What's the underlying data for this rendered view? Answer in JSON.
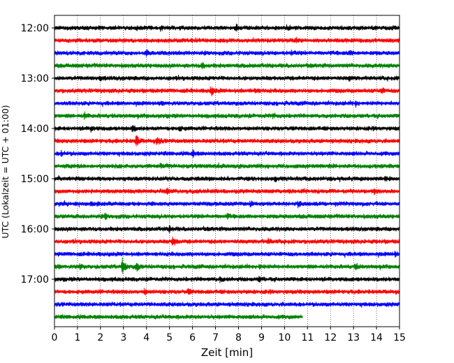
{
  "chart_data": {
    "type": "line",
    "title": "",
    "xlabel": "Zeit  [min]",
    "ylabel": "UTC (Lokalzeit = UTC + 01:00)",
    "xlim": [
      0,
      15
    ],
    "x_ticks": [
      "0",
      "1",
      "2",
      "3",
      "4",
      "5",
      "6",
      "7",
      "8",
      "9",
      "10",
      "11",
      "12",
      "13",
      "14",
      "15"
    ],
    "y_ticks": [
      "12:00",
      "13:00",
      "14:00",
      "15:00",
      "16:00",
      "17:00"
    ],
    "grid": "vertical dotted lines at each minute",
    "legend": "none",
    "trace_interval_minutes": 15,
    "color_cycle": [
      "#000000",
      "#ff0000",
      "#0000ff",
      "#008000"
    ],
    "series": [
      {
        "start": "12:00",
        "color": "#000000",
        "end_min": 15,
        "events": [
          {
            "t": 4.6,
            "amp": 1.2
          },
          {
            "t": 7.9,
            "amp": 1.1
          },
          {
            "t": 10.1,
            "amp": 1.3
          }
        ]
      },
      {
        "start": "12:15",
        "color": "#ff0000",
        "end_min": 15,
        "events": [
          {
            "t": 10.5,
            "amp": 1.4
          }
        ]
      },
      {
        "start": "12:30",
        "color": "#0000ff",
        "end_min": 15,
        "events": [
          {
            "t": 4.0,
            "amp": 1.3
          },
          {
            "t": 10.3,
            "amp": 1.1
          },
          {
            "t": 12.8,
            "amp": 1.1
          }
        ]
      },
      {
        "start": "12:45",
        "color": "#008000",
        "end_min": 15,
        "events": [
          {
            "t": 6.4,
            "amp": 1.6
          }
        ]
      },
      {
        "start": "13:00",
        "color": "#000000",
        "end_min": 15,
        "events": [
          {
            "t": 2.0,
            "amp": 1.1
          },
          {
            "t": 12.8,
            "amp": 1.0
          }
        ]
      },
      {
        "start": "13:15",
        "color": "#ff0000",
        "end_min": 15,
        "events": [
          {
            "t": 6.8,
            "amp": 2.5
          },
          {
            "t": 8.7,
            "amp": 1.3
          },
          {
            "t": 14.2,
            "amp": 1.2
          }
        ]
      },
      {
        "start": "13:30",
        "color": "#0000ff",
        "end_min": 15,
        "events": [
          {
            "t": 13.1,
            "amp": 1.2
          }
        ]
      },
      {
        "start": "13:45",
        "color": "#008000",
        "end_min": 15,
        "events": [
          {
            "t": 1.3,
            "amp": 1.2
          },
          {
            "t": 9.5,
            "amp": 1.0
          }
        ]
      },
      {
        "start": "14:00",
        "color": "#000000",
        "end_min": 15,
        "events": [
          {
            "t": 1.6,
            "amp": 1.4
          },
          {
            "t": 3.4,
            "amp": 1.6
          },
          {
            "t": 5.4,
            "amp": 1.3
          }
        ]
      },
      {
        "start": "14:15",
        "color": "#ff0000",
        "end_min": 15,
        "events": [
          {
            "t": 3.55,
            "amp": 4.0
          },
          {
            "t": 4.45,
            "amp": 2.4
          }
        ]
      },
      {
        "start": "14:30",
        "color": "#0000ff",
        "end_min": 15,
        "events": [
          {
            "t": 6.0,
            "amp": 1.8
          },
          {
            "t": 0.3,
            "amp": 1.2
          }
        ]
      },
      {
        "start": "14:45",
        "color": "#008000",
        "end_min": 15,
        "events": [
          {
            "t": 4.6,
            "amp": 1.0
          }
        ]
      },
      {
        "start": "15:00",
        "color": "#000000",
        "end_min": 15,
        "events": [
          {
            "t": 9.6,
            "amp": 1.0
          },
          {
            "t": 14.4,
            "amp": 1.1
          }
        ]
      },
      {
        "start": "15:15",
        "color": "#ff0000",
        "end_min": 15,
        "events": [
          {
            "t": 4.9,
            "amp": 1.2
          },
          {
            "t": 13.9,
            "amp": 1.0
          }
        ]
      },
      {
        "start": "15:30",
        "color": "#0000ff",
        "end_min": 15,
        "events": [
          {
            "t": 0.4,
            "amp": 1.4
          },
          {
            "t": 8.5,
            "amp": 1.5
          },
          {
            "t": 10.6,
            "amp": 1.4
          }
        ]
      },
      {
        "start": "15:45",
        "color": "#008000",
        "end_min": 15,
        "events": [
          {
            "t": 2.2,
            "amp": 1.5
          },
          {
            "t": 7.5,
            "amp": 1.0
          }
        ]
      },
      {
        "start": "16:00",
        "color": "#000000",
        "end_min": 15,
        "events": [
          {
            "t": 5.0,
            "amp": 1.3
          }
        ]
      },
      {
        "start": "16:15",
        "color": "#ff0000",
        "end_min": 15,
        "events": [
          {
            "t": 5.15,
            "amp": 3.2
          },
          {
            "t": 9.3,
            "amp": 1.3
          }
        ]
      },
      {
        "start": "16:30",
        "color": "#0000ff",
        "end_min": 15,
        "events": [
          {
            "t": 14.8,
            "amp": 1.1
          }
        ]
      },
      {
        "start": "16:45",
        "color": "#008000",
        "end_min": 15,
        "events": [
          {
            "t": 2.95,
            "amp": 5.0
          },
          {
            "t": 3.55,
            "amp": 2.6
          },
          {
            "t": 1.1,
            "amp": 1.3
          },
          {
            "t": 8.9,
            "amp": 1.2
          },
          {
            "t": 13.1,
            "amp": 1.3
          }
        ]
      },
      {
        "start": "17:00",
        "color": "#000000",
        "end_min": 15,
        "events": [
          {
            "t": 7.2,
            "amp": 1.1
          },
          {
            "t": 8.9,
            "amp": 1.2
          }
        ]
      },
      {
        "start": "17:15",
        "color": "#ff0000",
        "end_min": 15,
        "events": [
          {
            "t": 3.9,
            "amp": 1.3
          },
          {
            "t": 5.8,
            "amp": 1.1
          }
        ]
      },
      {
        "start": "17:30",
        "color": "#0000ff",
        "end_min": 15,
        "events": []
      },
      {
        "start": "17:45",
        "color": "#008000",
        "end_min": 10.8,
        "events": []
      }
    ]
  }
}
